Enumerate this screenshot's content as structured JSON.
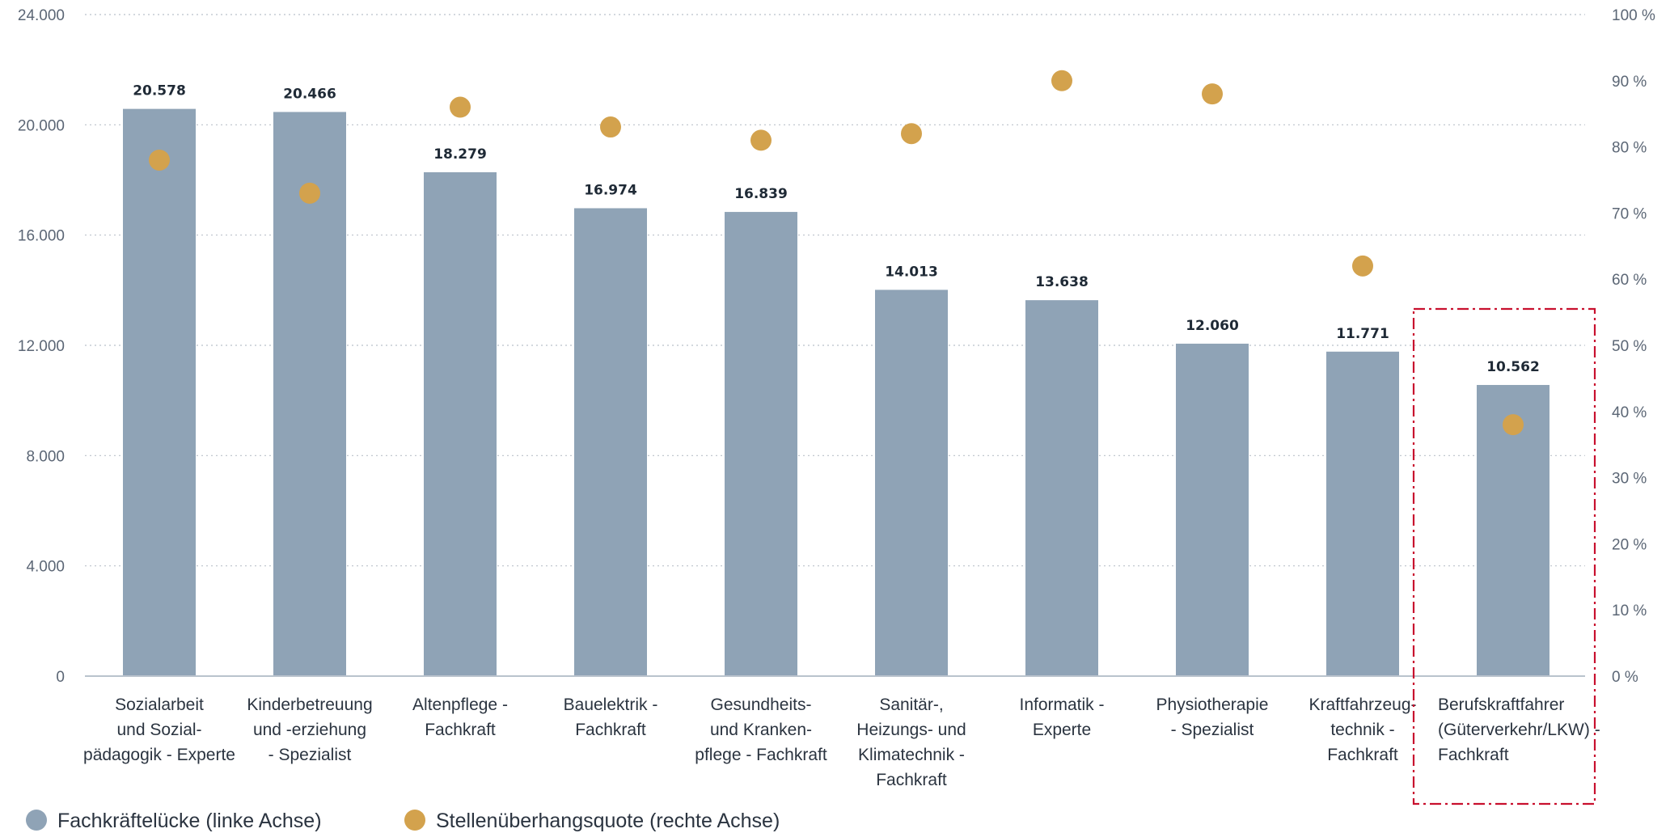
{
  "chart_data": {
    "type": "bar",
    "categories": [
      [
        "Sozialarbeit",
        "und Sozial-",
        "pädagogik - Experte"
      ],
      [
        "Kinderbetreuung",
        "und -erziehung",
        "- Spezialist"
      ],
      [
        "Altenpflege -",
        "Fachkraft"
      ],
      [
        "Bauelektrik -",
        "Fachkraft"
      ],
      [
        "Gesundheits-",
        "und Kranken-",
        "pflege - Fachkraft"
      ],
      [
        "Sanitär-,",
        "Heizungs- und",
        "Klimatechnik -",
        "Fachkraft"
      ],
      [
        "Informatik -",
        "Experte"
      ],
      [
        "Physiotherapie",
        "- Spezialist"
      ],
      [
        "Kraftfahrzeug-",
        "technik -",
        "Fachkraft"
      ],
      [
        "Berufskraftfahrer",
        "(Güterverkehr/LKW) -",
        "Fachkraft"
      ]
    ],
    "series": [
      {
        "name": "Fachkräftelücke (linke Achse)",
        "type": "bar",
        "axis": "left",
        "color": "#8fa3b6",
        "values": [
          20578,
          20466,
          18279,
          16974,
          16839,
          14013,
          13638,
          12060,
          11771,
          10562
        ],
        "labels": [
          "20.578",
          "20.466",
          "18.279",
          "16.974",
          "16.839",
          "14.013",
          "13.638",
          "12.060",
          "11.771",
          "10.562"
        ]
      },
      {
        "name": "Stellenüberhangsquote (rechte Achse)",
        "type": "scatter",
        "axis": "right",
        "color": "#d3a24d",
        "values": [
          78,
          73,
          86,
          83,
          81,
          82,
          90,
          88,
          62,
          38
        ]
      }
    ],
    "y_left": {
      "lim": [
        0,
        24000
      ],
      "ticks": [
        0,
        4000,
        8000,
        12000,
        16000,
        20000,
        24000
      ],
      "tick_labels": [
        "0",
        "4.000",
        "8.000",
        "12.000",
        "16.000",
        "20.000",
        "24.000"
      ]
    },
    "y_right": {
      "lim": [
        0,
        100
      ],
      "ticks": [
        0,
        10,
        20,
        30,
        40,
        50,
        60,
        70,
        80,
        90,
        100
      ],
      "tick_labels": [
        "0 %",
        "10 %",
        "20 %",
        "30 %",
        "40 %",
        "50 %",
        "60 %",
        "70 %",
        "80 %",
        "90 %",
        "100 %"
      ]
    },
    "grid": true,
    "highlight": {
      "category_index": 9,
      "style": "dash-dot",
      "color": "#c8102e"
    },
    "legend": {
      "position": "bottom-left",
      "items": [
        {
          "label": "Fachkräftelücke (linke Achse)",
          "color": "#8fa3b6"
        },
        {
          "label": "Stellenüberhangsquote (rechte Achse)",
          "color": "#d3a24d"
        }
      ]
    }
  }
}
